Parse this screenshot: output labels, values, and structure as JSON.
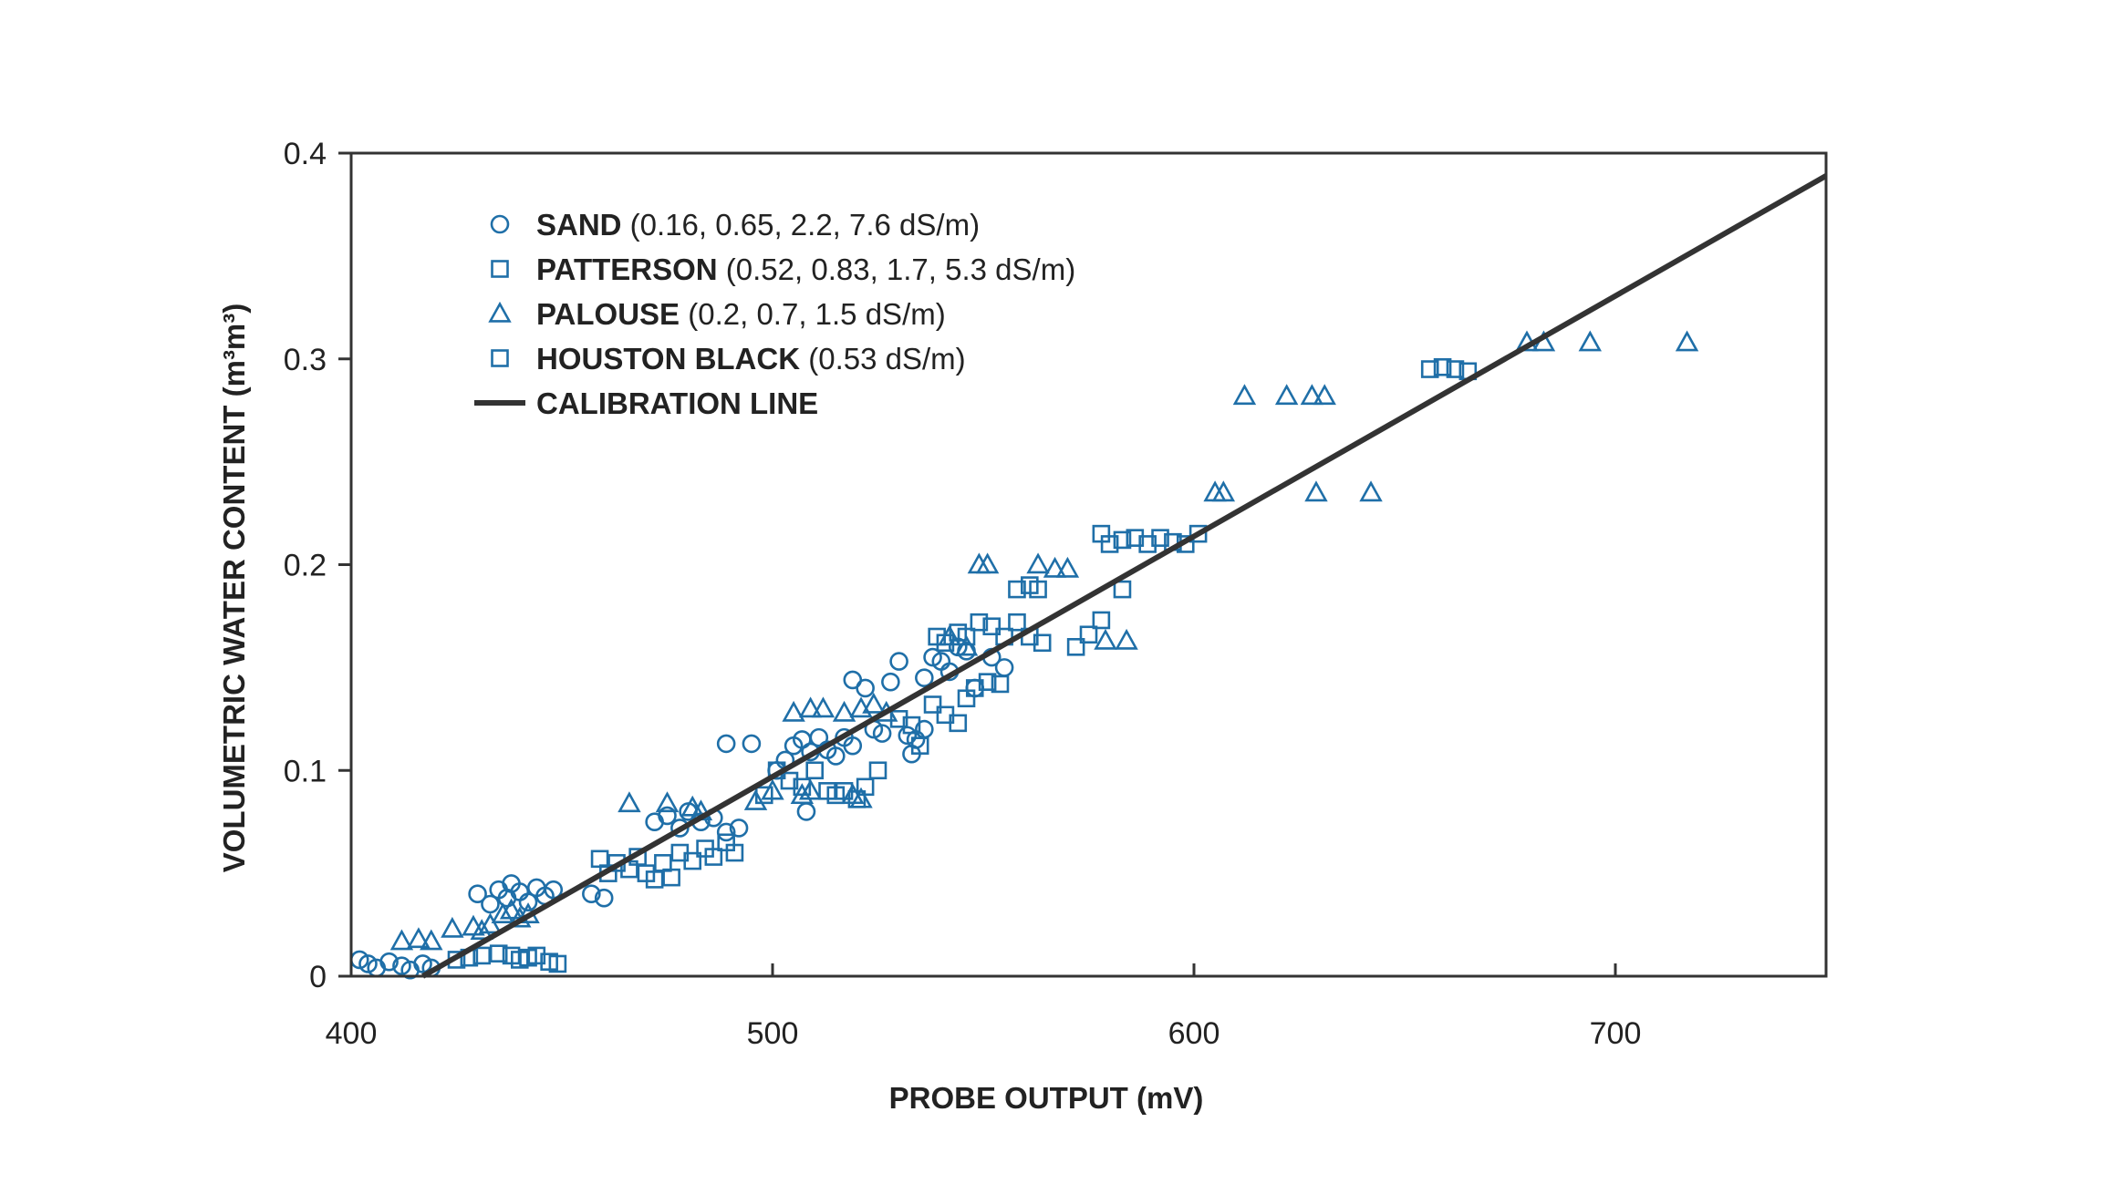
{
  "chart_data": {
    "type": "scatter",
    "xlabel": "PROBE OUTPUT (mV)",
    "ylabel": "VOLUMETRIC WATER CONTENT (m³m³)",
    "xlim": [
      400,
      750
    ],
    "ylim": [
      0,
      0.4
    ],
    "xticks": [
      400,
      500,
      600,
      700
    ],
    "xtick_labels": [
      "400",
      "500",
      "600",
      "700"
    ],
    "yticks": [
      0,
      0.1,
      0.2,
      0.3,
      0.4
    ],
    "ytick_labels": [
      "0",
      "0.1",
      "0.2",
      "0.3",
      "0.4"
    ],
    "grid": false,
    "marker_color": "#1f6fa8",
    "line_color": "#333333",
    "legend": [
      {
        "name": "SAND",
        "detail": "(0.16, 0.65, 2.2, 7.6 dS/m)",
        "marker": "circle"
      },
      {
        "name": "PATTERSON",
        "detail": "(0.52, 0.83, 1.7, 5.3 dS/m)",
        "marker": "square"
      },
      {
        "name": "PALOUSE",
        "detail": "(0.2, 0.7, 1.5 dS/m)",
        "marker": "triangle"
      },
      {
        "name": "HOUSTON BLACK",
        "detail": "(0.53 dS/m)",
        "marker": "square"
      },
      {
        "name": "CALIBRATION LINE",
        "detail": "",
        "marker": "line"
      }
    ],
    "series": [
      {
        "name": "SAND",
        "marker": "circle",
        "points": [
          [
            402,
            0.008
          ],
          [
            404,
            0.006
          ],
          [
            406,
            0.004
          ],
          [
            409,
            0.007
          ],
          [
            412,
            0.005
          ],
          [
            414,
            0.003
          ],
          [
            417,
            0.006
          ],
          [
            419,
            0.004
          ],
          [
            430,
            0.04
          ],
          [
            433,
            0.035
          ],
          [
            435,
            0.042
          ],
          [
            437,
            0.038
          ],
          [
            438,
            0.045
          ],
          [
            440,
            0.041
          ],
          [
            442,
            0.036
          ],
          [
            444,
            0.043
          ],
          [
            446,
            0.039
          ],
          [
            448,
            0.042
          ],
          [
            457,
            0.04
          ],
          [
            460,
            0.038
          ],
          [
            472,
            0.075
          ],
          [
            475,
            0.078
          ],
          [
            478,
            0.072
          ],
          [
            480,
            0.08
          ],
          [
            483,
            0.075
          ],
          [
            486,
            0.077
          ],
          [
            489,
            0.07
          ],
          [
            492,
            0.072
          ],
          [
            489,
            0.113
          ],
          [
            495,
            0.113
          ],
          [
            501,
            0.1
          ],
          [
            503,
            0.105
          ],
          [
            505,
            0.112
          ],
          [
            507,
            0.115
          ],
          [
            509,
            0.109
          ],
          [
            511,
            0.116
          ],
          [
            513,
            0.11
          ],
          [
            515,
            0.107
          ],
          [
            517,
            0.116
          ],
          [
            519,
            0.112
          ],
          [
            508,
            0.08
          ],
          [
            519,
            0.144
          ],
          [
            522,
            0.14
          ],
          [
            524,
            0.12
          ],
          [
            526,
            0.118
          ],
          [
            528,
            0.143
          ],
          [
            530,
            0.153
          ],
          [
            532,
            0.117
          ],
          [
            534,
            0.115
          ],
          [
            536,
            0.12
          ],
          [
            538,
            0.155
          ],
          [
            540,
            0.153
          ],
          [
            542,
            0.148
          ],
          [
            544,
            0.16
          ],
          [
            546,
            0.158
          ],
          [
            548,
            0.14
          ],
          [
            552,
            0.155
          ],
          [
            555,
            0.15
          ],
          [
            533,
            0.108
          ],
          [
            536,
            0.145
          ]
        ]
      },
      {
        "name": "PATTERSON",
        "marker": "square",
        "points": [
          [
            459,
            0.057
          ],
          [
            461,
            0.05
          ],
          [
            463,
            0.055
          ],
          [
            466,
            0.052
          ],
          [
            468,
            0.058
          ],
          [
            470,
            0.05
          ],
          [
            472,
            0.047
          ],
          [
            474,
            0.055
          ],
          [
            476,
            0.048
          ],
          [
            478,
            0.06
          ],
          [
            481,
            0.056
          ],
          [
            484,
            0.062
          ],
          [
            486,
            0.058
          ],
          [
            489,
            0.065
          ],
          [
            491,
            0.06
          ],
          [
            498,
            0.088
          ],
          [
            501,
            0.1
          ],
          [
            504,
            0.095
          ],
          [
            507,
            0.092
          ],
          [
            510,
            0.1
          ],
          [
            513,
            0.09
          ],
          [
            515,
            0.088
          ],
          [
            517,
            0.09
          ],
          [
            520,
            0.086
          ],
          [
            522,
            0.092
          ],
          [
            525,
            0.1
          ],
          [
            530,
            0.125
          ],
          [
            533,
            0.122
          ],
          [
            535,
            0.112
          ],
          [
            538,
            0.132
          ],
          [
            541,
            0.127
          ],
          [
            544,
            0.123
          ],
          [
            546,
            0.135
          ],
          [
            548,
            0.14
          ],
          [
            551,
            0.143
          ],
          [
            554,
            0.142
          ],
          [
            539,
            0.165
          ],
          [
            541,
            0.162
          ],
          [
            544,
            0.167
          ],
          [
            546,
            0.165
          ],
          [
            549,
            0.172
          ],
          [
            552,
            0.17
          ],
          [
            555,
            0.165
          ],
          [
            558,
            0.172
          ],
          [
            561,
            0.165
          ],
          [
            564,
            0.162
          ],
          [
            558,
            0.188
          ],
          [
            561,
            0.19
          ],
          [
            563,
            0.188
          ],
          [
            572,
            0.16
          ],
          [
            575,
            0.166
          ],
          [
            578,
            0.173
          ],
          [
            583,
            0.188
          ]
        ]
      },
      {
        "name": "PALOUSE",
        "marker": "triangle",
        "points": [
          [
            412,
            0.017
          ],
          [
            416,
            0.018
          ],
          [
            419,
            0.017
          ],
          [
            424,
            0.023
          ],
          [
            429,
            0.024
          ],
          [
            431,
            0.022
          ],
          [
            433,
            0.025
          ],
          [
            436,
            0.03
          ],
          [
            438,
            0.032
          ],
          [
            440,
            0.028
          ],
          [
            442,
            0.03
          ],
          [
            466,
            0.084
          ],
          [
            475,
            0.084
          ],
          [
            481,
            0.082
          ],
          [
            483,
            0.08
          ],
          [
            496,
            0.085
          ],
          [
            500,
            0.09
          ],
          [
            507,
            0.088
          ],
          [
            509,
            0.09
          ],
          [
            519,
            0.088
          ],
          [
            521,
            0.086
          ],
          [
            505,
            0.128
          ],
          [
            509,
            0.13
          ],
          [
            512,
            0.13
          ],
          [
            517,
            0.128
          ],
          [
            521,
            0.13
          ],
          [
            524,
            0.132
          ],
          [
            527,
            0.128
          ],
          [
            542,
            0.165
          ],
          [
            546,
            0.16
          ],
          [
            549,
            0.2
          ],
          [
            551,
            0.2
          ],
          [
            563,
            0.2
          ],
          [
            567,
            0.198
          ],
          [
            570,
            0.198
          ],
          [
            579,
            0.163
          ],
          [
            584,
            0.163
          ],
          [
            605,
            0.235
          ],
          [
            607,
            0.235
          ],
          [
            612,
            0.282
          ],
          [
            622,
            0.282
          ],
          [
            628,
            0.282
          ],
          [
            631,
            0.282
          ],
          [
            629,
            0.235
          ],
          [
            642,
            0.235
          ],
          [
            679,
            0.308
          ],
          [
            683,
            0.308
          ],
          [
            694,
            0.308
          ],
          [
            717,
            0.308
          ]
        ]
      },
      {
        "name": "HOUSTON BLACK",
        "marker": "square",
        "points": [
          [
            425,
            0.008
          ],
          [
            428,
            0.009
          ],
          [
            431,
            0.01
          ],
          [
            435,
            0.011
          ],
          [
            438,
            0.01
          ],
          [
            440,
            0.008
          ],
          [
            442,
            0.009
          ],
          [
            444,
            0.01
          ],
          [
            447,
            0.007
          ],
          [
            449,
            0.006
          ],
          [
            578,
            0.215
          ],
          [
            580,
            0.21
          ],
          [
            583,
            0.212
          ],
          [
            586,
            0.213
          ],
          [
            589,
            0.21
          ],
          [
            592,
            0.213
          ],
          [
            595,
            0.211
          ],
          [
            598,
            0.21
          ],
          [
            601,
            0.215
          ],
          [
            656,
            0.295
          ],
          [
            659,
            0.296
          ],
          [
            662,
            0.295
          ],
          [
            665,
            0.294
          ]
        ]
      }
    ],
    "calibration_line": {
      "name": "CALIBRATION LINE",
      "x": [
        417,
        750
      ],
      "y": [
        0,
        0.389
      ]
    }
  }
}
